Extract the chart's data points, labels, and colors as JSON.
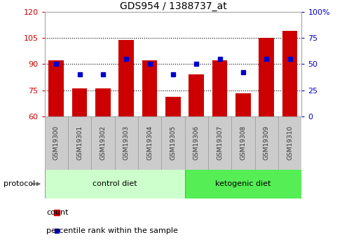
{
  "title": "GDS954 / 1388737_at",
  "samples": [
    "GSM19300",
    "GSM19301",
    "GSM19302",
    "GSM19303",
    "GSM19304",
    "GSM19305",
    "GSM19306",
    "GSM19307",
    "GSM19308",
    "GSM19309",
    "GSM19310"
  ],
  "counts": [
    92,
    76,
    76,
    104,
    92,
    71,
    84,
    92,
    73,
    105,
    109
  ],
  "percentile_ranks": [
    50,
    40,
    40,
    55,
    50,
    40,
    50,
    55,
    42,
    55,
    55
  ],
  "ymin": 60,
  "ymax": 120,
  "yr_min": 0,
  "yr_max": 100,
  "yticks_left": [
    60,
    75,
    90,
    105,
    120
  ],
  "yticks_right": [
    0,
    25,
    50,
    75,
    100
  ],
  "bar_color": "#cc0000",
  "dot_color": "#0000cc",
  "control_color": "#ccffcc",
  "ketogenic_color": "#55ee55",
  "tick_label_color_left": "#cc0000",
  "tick_label_color_right": "#0000cc",
  "title_fontsize": 10,
  "group_labels": [
    "control diet",
    "ketogenic diet"
  ],
  "legend_count_label": "count",
  "legend_percentile_label": "percentile rank within the sample",
  "n_control": 6,
  "n_ketogenic": 5
}
